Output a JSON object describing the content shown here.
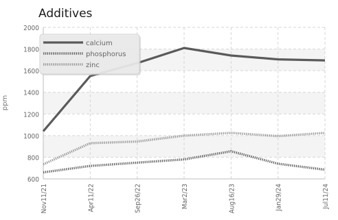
{
  "chart_data": {
    "type": "line",
    "title": "Additives",
    "ylabel": "ppm",
    "xlabel": "",
    "categories": [
      "Nov11/21",
      "Apr11/22",
      "Sep26/22",
      "Mar2/23",
      "Aug16/23",
      "Jan29/24",
      "Jul11/24"
    ],
    "ylim": [
      600,
      2000
    ],
    "yticks": [
      600,
      800,
      1000,
      1200,
      1400,
      1600,
      1800,
      2000
    ],
    "grid": true,
    "legend_position": "top-left",
    "series": [
      {
        "name": "calcium",
        "color": "#5a5a5a",
        "style": "solid",
        "values": [
          1040,
          1550,
          1670,
          1810,
          1740,
          1705,
          1695
        ]
      },
      {
        "name": "phosphorus",
        "color": "#666666",
        "style": "dotted",
        "values": [
          660,
          720,
          750,
          780,
          855,
          740,
          685
        ]
      },
      {
        "name": "zinc",
        "color": "#9a9a9a",
        "style": "dotted",
        "values": [
          735,
          930,
          945,
          1000,
          1025,
          995,
          1025
        ]
      }
    ]
  }
}
